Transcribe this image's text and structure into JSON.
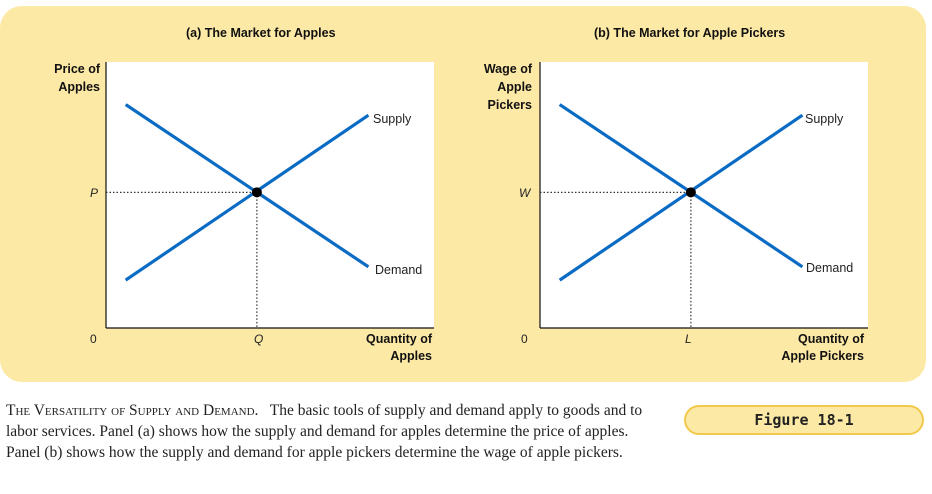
{
  "colors": {
    "curve": "#0a6bc4",
    "panel_bg": "#fde9a6",
    "badge_border": "#f2c94c"
  },
  "panels": [
    {
      "title": "(a) The Market for Apples",
      "ylabel_lines": [
        "Price of",
        "Apples"
      ],
      "xlabel_lines": [
        "Quantity of",
        "Apples"
      ],
      "origin": "0",
      "y_tick": "P",
      "x_tick": "Q",
      "supply_label": "Supply",
      "demand_label": "Demand"
    },
    {
      "title": "(b) The Market for Apple Pickers",
      "ylabel_lines": [
        "Wage of",
        "Apple",
        "Pickers"
      ],
      "xlabel_lines": [
        "Quantity of",
        "Apple Pickers"
      ],
      "origin": "0",
      "y_tick": "W",
      "x_tick": "L",
      "supply_label": "Supply",
      "demand_label": "Demand"
    }
  ],
  "chart_data": [
    {
      "type": "line",
      "title": "(a) The Market for Apples",
      "xlabel": "Quantity of Apples",
      "ylabel": "Price of Apples",
      "series": [
        {
          "name": "Supply",
          "x": [
            0.06,
            0.8
          ],
          "y": [
            0.18,
            0.8
          ]
        },
        {
          "name": "Demand",
          "x": [
            0.06,
            0.8
          ],
          "y": [
            0.84,
            0.23
          ]
        }
      ],
      "equilibrium": {
        "x": 0.46,
        "y": 0.51,
        "x_label": "Q",
        "y_label": "P"
      },
      "xlim": [
        0,
        1
      ],
      "ylim": [
        0,
        1
      ],
      "grid": false
    },
    {
      "type": "line",
      "title": "(b) The Market for Apple Pickers",
      "xlabel": "Quantity of Apple Pickers",
      "ylabel": "Wage of Apple Pickers",
      "series": [
        {
          "name": "Supply",
          "x": [
            0.06,
            0.8
          ],
          "y": [
            0.18,
            0.8
          ]
        },
        {
          "name": "Demand",
          "x": [
            0.06,
            0.8
          ],
          "y": [
            0.84,
            0.23
          ]
        }
      ],
      "equilibrium": {
        "x": 0.46,
        "y": 0.51,
        "x_label": "L",
        "y_label": "W"
      },
      "xlim": [
        0,
        1
      ],
      "ylim": [
        0,
        1
      ],
      "grid": false
    }
  ],
  "caption": {
    "lead": "The Versatility of Supply and Demand.",
    "text": "The basic tools of supply and demand apply to goods and to labor services. Panel (a) shows how the supply and demand for apples determine the price of apples. Panel (b) shows how the supply and demand for apple pickers determine the wage of apple pickers."
  },
  "figure_label": "Figure 18-1"
}
